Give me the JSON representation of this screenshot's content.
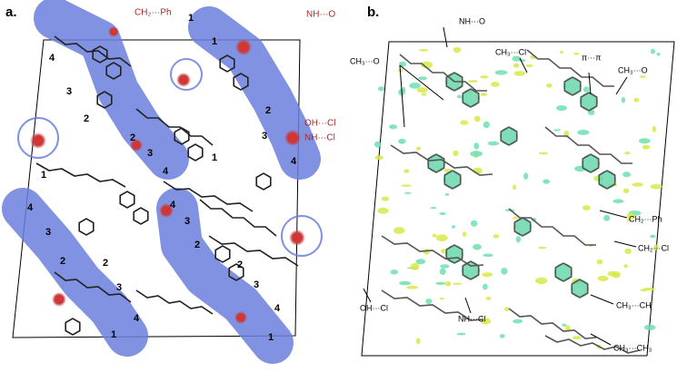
{
  "panel_a": {
    "label": "a.",
    "interactions": [
      "CH₂···Ph",
      "NH···O",
      "OH···Cl",
      "NH···Cl"
    ],
    "fragment_labels": [
      "1",
      "4",
      "3",
      "2",
      "2",
      "3",
      "4",
      "1",
      "2",
      "3",
      "4",
      "1",
      "4",
      "3",
      "2",
      "2",
      "3",
      "4",
      "1",
      "1",
      "4",
      "3",
      "2",
      "2",
      "3",
      "4",
      "1"
    ]
  },
  "panel_b": {
    "label": "b.",
    "interactions": [
      "NH···O",
      "CH₃···Cl",
      "CH₃···O",
      "π···π",
      "CH₃···O",
      "CH₂···Ph",
      "CH₂···Cl",
      "OH···Cl",
      "NH···Cl",
      "CH₃···CH",
      "CH₃···CH₃"
    ]
  }
}
